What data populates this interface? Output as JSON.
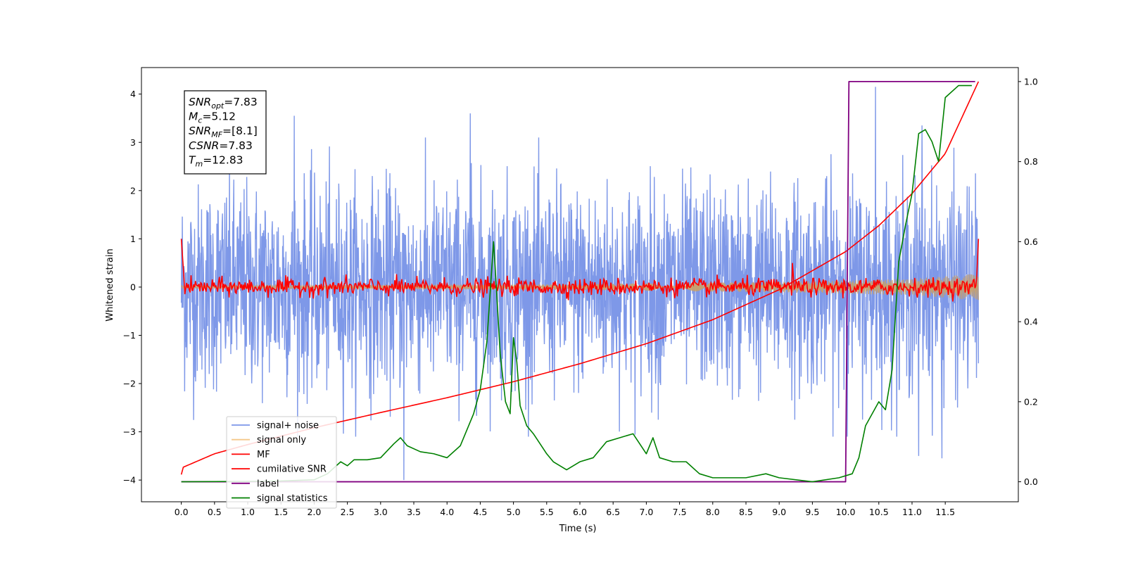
{
  "chart_data": {
    "type": "line",
    "title": "",
    "xlabel": "Time (s)",
    "ylabel": "Whitened strain",
    "ylabel_right": "",
    "xlim": [
      -0.6,
      12.6
    ],
    "ylim": [
      -4.45,
      4.55
    ],
    "ylim_right": [
      -0.05,
      1.035
    ],
    "x_ticks": [
      0.0,
      0.5,
      1.0,
      1.5,
      2.0,
      2.5,
      3.0,
      3.5,
      4.0,
      4.5,
      5.0,
      5.5,
      6.0,
      6.5,
      7.0,
      7.5,
      8.0,
      8.5,
      9.0,
      9.5,
      10.0,
      10.5,
      11.0,
      11.5
    ],
    "x_tick_labels": [
      "0.0",
      "0.5",
      "1.0",
      "1.5",
      "2.0",
      "2.5",
      "3.0",
      "3.5",
      "4.0",
      "4.5",
      "5.0",
      "5.5",
      "6.0",
      "6.5",
      "7.0",
      "7.5",
      "8.0",
      "8.5",
      "9.0",
      "9.5",
      "10.0",
      "10.5",
      "11.0",
      "11.5"
    ],
    "y_ticks": [
      -4,
      -3,
      -2,
      -1,
      0,
      1,
      2,
      3,
      4
    ],
    "y_tick_labels": [
      "−4",
      "−3",
      "−2",
      "−1",
      "0",
      "1",
      "2",
      "3",
      "4"
    ],
    "y_right_ticks": [
      0.0,
      0.2,
      0.4,
      0.6,
      0.8,
      1.0
    ],
    "y_right_tick_labels": [
      "0.0",
      "0.2",
      "0.4",
      "0.6",
      "0.8",
      "1.0"
    ],
    "grid": false,
    "legend_position": "bottom-left",
    "legend": [
      {
        "label": "signal+ noise",
        "color": "#7b96e8"
      },
      {
        "label": "signal only",
        "color": "#f5c88a"
      },
      {
        "label": "MF",
        "color": "#ff0000"
      },
      {
        "label": "cumilative SNR",
        "color": "#ff0000"
      },
      {
        "label": "label",
        "color": "#800080"
      },
      {
        "label": "signal statistics",
        "color": "#008000"
      }
    ],
    "annotation_box": [
      {
        "base": "SNR",
        "sub": "opt",
        "value": "=7.83"
      },
      {
        "base": "M",
        "sub": "c",
        "value": "=5.12"
      },
      {
        "base": "SNR",
        "sub": "MF",
        "value": "=[8.1]"
      },
      {
        "base": "CSNR",
        "sub": "",
        "value": "=7.83"
      },
      {
        "base": "T",
        "sub": "m",
        "value": "=12.83"
      }
    ],
    "series": [
      {
        "name": "signal+ noise",
        "axis": "left",
        "color": "#7b96e8",
        "duration": 12.0,
        "amplitude_std": 1.05,
        "spikes": [
          [
            1.7,
            3.55
          ],
          [
            4.35,
            3.6
          ],
          [
            10.45,
            4.15
          ],
          [
            11.15,
            3.35
          ],
          [
            3.35,
            -4.0
          ],
          [
            11.1,
            -3.5
          ],
          [
            11.45,
            -3.55
          ]
        ]
      },
      {
        "name": "signal only",
        "axis": "left",
        "color": "#f5c88a",
        "duration": 12.0,
        "envelope": [
          [
            0.0,
            0.03
          ],
          [
            6.0,
            0.06
          ],
          [
            9.0,
            0.11
          ],
          [
            11.0,
            0.17
          ],
          [
            12.0,
            0.28
          ]
        ]
      },
      {
        "name": "MF",
        "axis": "left",
        "color": "#ff0000",
        "duration": 12.0,
        "peaks": [
          [
            0.0,
            1.0
          ],
          [
            12.0,
            1.0
          ],
          [
            9.2,
            0.5
          ]
        ]
      },
      {
        "name": "cumilative SNR",
        "axis": "right",
        "color": "#ff0000",
        "x": [
          0.0,
          0.01,
          0.5,
          1.0,
          2.0,
          3.0,
          4.0,
          5.0,
          6.0,
          7.0,
          8.0,
          9.0,
          10.0,
          10.5,
          11.0,
          11.5,
          12.0
        ],
        "y": [
          0.018,
          0.035,
          0.07,
          0.093,
          0.135,
          0.173,
          0.21,
          0.25,
          0.295,
          0.345,
          0.405,
          0.48,
          0.575,
          0.64,
          0.72,
          0.82,
          1.0
        ]
      },
      {
        "name": "label",
        "axis": "right",
        "color": "#800080",
        "x": [
          0.0,
          10.0,
          10.05,
          11.95
        ],
        "y": [
          0.0,
          0.0,
          1.0,
          1.0
        ]
      },
      {
        "name": "signal statistics",
        "axis": "right",
        "color": "#008000",
        "x": [
          0.0,
          1.0,
          1.5,
          2.0,
          2.2,
          2.4,
          2.5,
          2.6,
          2.8,
          3.0,
          3.2,
          3.3,
          3.4,
          3.6,
          3.8,
          4.0,
          4.2,
          4.4,
          4.5,
          4.6,
          4.7,
          4.73,
          4.8,
          4.88,
          4.95,
          5.0,
          5.05,
          5.1,
          5.2,
          5.3,
          5.5,
          5.6,
          5.8,
          6.0,
          6.2,
          6.4,
          6.6,
          6.8,
          7.0,
          7.1,
          7.2,
          7.4,
          7.6,
          7.8,
          8.0,
          8.5,
          8.8,
          9.0,
          9.5,
          9.9,
          10.1,
          10.2,
          10.3,
          10.5,
          10.6,
          10.7,
          10.8,
          10.9,
          11.0,
          11.1,
          11.2,
          11.3,
          11.4,
          11.5,
          11.7,
          11.9
        ],
        "y": [
          0.0,
          0.001,
          0.002,
          0.005,
          0.02,
          0.05,
          0.04,
          0.055,
          0.055,
          0.06,
          0.095,
          0.11,
          0.09,
          0.075,
          0.07,
          0.06,
          0.09,
          0.17,
          0.23,
          0.35,
          0.6,
          0.52,
          0.32,
          0.2,
          0.17,
          0.36,
          0.3,
          0.19,
          0.14,
          0.12,
          0.07,
          0.05,
          0.03,
          0.05,
          0.06,
          0.1,
          0.11,
          0.12,
          0.07,
          0.11,
          0.06,
          0.05,
          0.05,
          0.02,
          0.01,
          0.01,
          0.02,
          0.01,
          0.0,
          0.01,
          0.02,
          0.06,
          0.14,
          0.2,
          0.18,
          0.28,
          0.55,
          0.64,
          0.72,
          0.87,
          0.88,
          0.85,
          0.8,
          0.96,
          0.99,
          0.99
        ]
      }
    ]
  }
}
